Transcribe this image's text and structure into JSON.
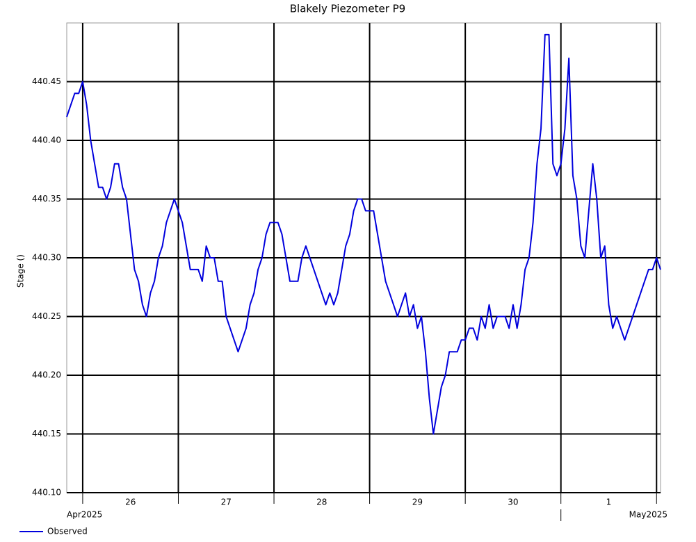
{
  "chart_data": {
    "type": "line",
    "title": "Blakely Piezometer P9",
    "y_label": "Stage ()",
    "ylim": [
      440.1,
      440.5
    ],
    "yticks": [
      {
        "value": 440.1,
        "label": "440.10"
      },
      440.15,
      {
        "value": 440.2,
        "label": "440.20"
      },
      440.25,
      {
        "value": 440.3,
        "label": "440.30"
      },
      440.35,
      {
        "value": 440.4,
        "label": "440.40"
      },
      440.45
    ],
    "xlim": [
      "2025-04-25T20:00",
      "2025-05-02T01:00"
    ],
    "xticks": [
      {
        "value": "2025-04-26",
        "label": "26"
      },
      {
        "value": "2025-04-27",
        "label": "27"
      },
      {
        "value": "2025-04-28",
        "label": "28"
      },
      {
        "value": "2025-04-29",
        "label": "29"
      },
      {
        "value": "2025-04-30",
        "label": "30"
      },
      {
        "value": "2025-05-01",
        "label": "1"
      },
      {
        "value": "2025-05-02",
        "label": null
      }
    ],
    "month_labels": [
      {
        "value": "2025-04-25",
        "label": "Apr2025"
      },
      {
        "value": "2025-05-01",
        "label": "May2025"
      }
    ],
    "grid": true,
    "legend": "bottom-left",
    "x": [
      "2025-04-25T20:00",
      "2025-04-25T21:00",
      "2025-04-25T22:00",
      "2025-04-25T23:00",
      "2025-04-26T00:00",
      "2025-04-26T01:00",
      "2025-04-26T02:00",
      "2025-04-26T03:00",
      "2025-04-26T04:00",
      "2025-04-26T05:00",
      "2025-04-26T06:00",
      "2025-04-26T07:00",
      "2025-04-26T08:00",
      "2025-04-26T09:00",
      "2025-04-26T10:00",
      "2025-04-26T11:00",
      "2025-04-26T12:00",
      "2025-04-26T13:00",
      "2025-04-26T14:00",
      "2025-04-26T15:00",
      "2025-04-26T16:00",
      "2025-04-26T17:00",
      "2025-04-26T18:00",
      "2025-04-26T19:00",
      "2025-04-26T20:00",
      "2025-04-26T21:00",
      "2025-04-26T22:00",
      "2025-04-26T23:00",
      "2025-04-27T00:00",
      "2025-04-27T01:00",
      "2025-04-27T02:00",
      "2025-04-27T03:00",
      "2025-04-27T04:00",
      "2025-04-27T05:00",
      "2025-04-27T06:00",
      "2025-04-27T07:00",
      "2025-04-27T08:00",
      "2025-04-27T09:00",
      "2025-04-27T10:00",
      "2025-04-27T11:00",
      "2025-04-27T12:00",
      "2025-04-27T13:00",
      "2025-04-27T14:00",
      "2025-04-27T15:00",
      "2025-04-27T16:00",
      "2025-04-27T17:00",
      "2025-04-27T18:00",
      "2025-04-27T19:00",
      "2025-04-27T20:00",
      "2025-04-27T21:00",
      "2025-04-27T22:00",
      "2025-04-27T23:00",
      "2025-04-28T00:00",
      "2025-04-28T01:00",
      "2025-04-28T02:00",
      "2025-04-28T03:00",
      "2025-04-28T04:00",
      "2025-04-28T05:00",
      "2025-04-28T06:00",
      "2025-04-28T07:00",
      "2025-04-28T08:00",
      "2025-04-28T09:00",
      "2025-04-28T10:00",
      "2025-04-28T11:00",
      "2025-04-28T12:00",
      "2025-04-28T13:00",
      "2025-04-28T14:00",
      "2025-04-28T15:00",
      "2025-04-28T16:00",
      "2025-04-28T17:00",
      "2025-04-28T18:00",
      "2025-04-28T19:00",
      "2025-04-28T20:00",
      "2025-04-28T21:00",
      "2025-04-28T22:00",
      "2025-04-28T23:00",
      "2025-04-29T00:00",
      "2025-04-29T01:00",
      "2025-04-29T02:00",
      "2025-04-29T03:00",
      "2025-04-29T04:00",
      "2025-04-29T05:00",
      "2025-04-29T06:00",
      "2025-04-29T07:00",
      "2025-04-29T08:00",
      "2025-04-29T09:00",
      "2025-04-29T10:00",
      "2025-04-29T11:00",
      "2025-04-29T12:00",
      "2025-04-29T13:00",
      "2025-04-29T14:00",
      "2025-04-29T15:00",
      "2025-04-29T16:00",
      "2025-04-29T17:00",
      "2025-04-29T18:00",
      "2025-04-29T19:00",
      "2025-04-29T20:00",
      "2025-04-29T21:00",
      "2025-04-29T22:00",
      "2025-04-29T23:00",
      "2025-04-30T00:00",
      "2025-04-30T01:00",
      "2025-04-30T02:00",
      "2025-04-30T03:00",
      "2025-04-30T04:00",
      "2025-04-30T05:00",
      "2025-04-30T06:00",
      "2025-04-30T07:00",
      "2025-04-30T08:00",
      "2025-04-30T09:00",
      "2025-04-30T10:00",
      "2025-04-30T11:00",
      "2025-04-30T12:00",
      "2025-04-30T13:00",
      "2025-04-30T14:00",
      "2025-04-30T15:00",
      "2025-04-30T16:00",
      "2025-04-30T17:00",
      "2025-04-30T18:00",
      "2025-04-30T19:00",
      "2025-04-30T20:00",
      "2025-04-30T21:00",
      "2025-04-30T22:00",
      "2025-04-30T23:00",
      "2025-05-01T00:00",
      "2025-05-01T01:00",
      "2025-05-01T02:00",
      "2025-05-01T03:00",
      "2025-05-01T04:00",
      "2025-05-01T05:00",
      "2025-05-01T06:00",
      "2025-05-01T07:00",
      "2025-05-01T08:00",
      "2025-05-01T09:00",
      "2025-05-01T10:00",
      "2025-05-01T11:00",
      "2025-05-01T12:00",
      "2025-05-01T13:00",
      "2025-05-01T14:00",
      "2025-05-01T15:00",
      "2025-05-01T16:00",
      "2025-05-01T17:00",
      "2025-05-01T18:00",
      "2025-05-01T19:00",
      "2025-05-01T20:00",
      "2025-05-01T21:00",
      "2025-05-01T22:00",
      "2025-05-01T23:00",
      "2025-05-02T00:00",
      "2025-05-02T01:00"
    ],
    "series": [
      {
        "name": "Observed",
        "color": "#0000dd",
        "values": [
          440.42,
          440.43,
          440.44,
          440.44,
          440.45,
          440.43,
          440.4,
          440.38,
          440.36,
          440.36,
          440.35,
          440.36,
          440.38,
          440.38,
          440.36,
          440.35,
          440.32,
          440.29,
          440.28,
          440.26,
          440.25,
          440.27,
          440.28,
          440.3,
          440.31,
          440.33,
          440.34,
          440.35,
          440.34,
          440.33,
          440.31,
          440.29,
          440.29,
          440.29,
          440.28,
          440.31,
          440.3,
          440.3,
          440.28,
          440.28,
          440.25,
          440.24,
          440.23,
          440.22,
          440.23,
          440.24,
          440.26,
          440.27,
          440.29,
          440.3,
          440.32,
          440.33,
          440.33,
          440.33,
          440.32,
          440.3,
          440.28,
          440.28,
          440.28,
          440.3,
          440.31,
          440.3,
          440.29,
          440.28,
          440.27,
          440.26,
          440.27,
          440.26,
          440.27,
          440.29,
          440.31,
          440.32,
          440.34,
          440.35,
          440.35,
          440.34,
          440.34,
          440.34,
          440.32,
          440.3,
          440.28,
          440.27,
          440.26,
          440.25,
          440.26,
          440.27,
          440.25,
          440.26,
          440.24,
          440.25,
          440.22,
          440.18,
          440.15,
          440.17,
          440.19,
          440.2,
          440.22,
          440.22,
          440.22,
          440.23,
          440.23,
          440.24,
          440.24,
          440.23,
          440.25,
          440.24,
          440.26,
          440.24,
          440.25,
          440.25,
          440.25,
          440.24,
          440.26,
          440.24,
          440.26,
          440.29,
          440.3,
          440.33,
          440.38,
          440.41,
          440.49,
          440.49,
          440.38,
          440.37,
          440.38,
          440.41,
          440.47,
          440.37,
          440.35,
          440.31,
          440.3,
          440.34,
          440.38,
          440.35,
          440.3,
          440.31,
          440.26,
          440.24,
          440.25,
          440.24,
          440.23,
          440.24,
          440.25,
          440.26,
          440.27,
          440.28,
          440.29,
          440.29,
          440.3,
          440.29
        ]
      }
    ]
  }
}
